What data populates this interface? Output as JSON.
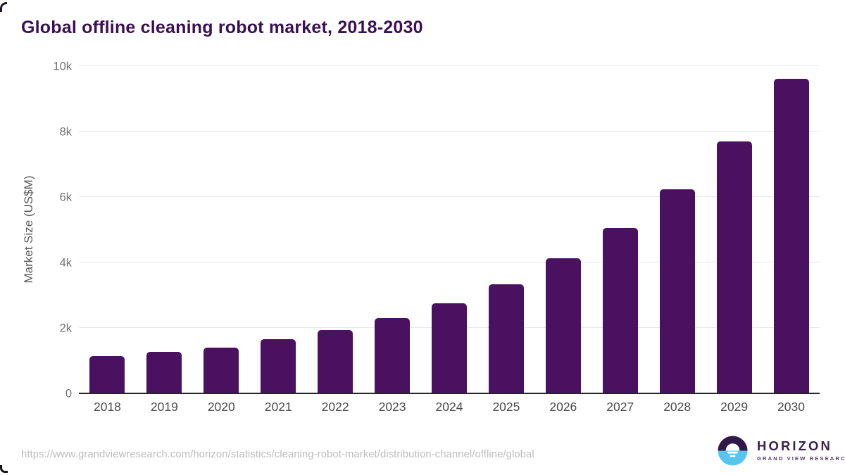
{
  "header": {
    "title": "Global offline cleaning robot market, 2018-2030"
  },
  "footer": {
    "source_url": "https://www.grandviewresearch.com/horizon/statistics/cleaning-robot-market/distribution-channel/offline/global",
    "logo": {
      "brand": "HORIZON",
      "sub_brand": "GRAND VIEW RESEARCH",
      "icon": "horizon-sun-circle-icon"
    }
  },
  "chart_data": {
    "type": "bar",
    "title": "Global offline cleaning robot market, 2018-2030",
    "categories": [
      "2018",
      "2019",
      "2020",
      "2021",
      "2022",
      "2023",
      "2024",
      "2025",
      "2026",
      "2027",
      "2028",
      "2029",
      "2030"
    ],
    "values": [
      1140,
      1270,
      1390,
      1660,
      1940,
      2310,
      2760,
      3340,
      4120,
      5050,
      6230,
      7700,
      9620
    ],
    "series_name": "Market Size",
    "xlabel": "",
    "ylabel": "Market Size (US$M)",
    "ylim": [
      0,
      10000
    ],
    "yticks": [
      {
        "value": 0,
        "label": "0"
      },
      {
        "value": 2000,
        "label": "2k"
      },
      {
        "value": 4000,
        "label": "4k"
      },
      {
        "value": 6000,
        "label": "6k"
      },
      {
        "value": 8000,
        "label": "8k"
      },
      {
        "value": 10000,
        "label": "10k"
      }
    ],
    "grid": true,
    "legend": "none",
    "bar_color": "#4a1160"
  },
  "colors": {
    "accent_purple": "#4a1160",
    "title_text": "#3b1053",
    "grid_line": "#e7e7e7",
    "axis_line": "#262626",
    "tick_label": "#747474",
    "axis_title": "#5a5a5a",
    "x_label": "#4c4c4c",
    "url_text": "#bdbdbd",
    "logo_dark_purple": "#32184a",
    "logo_blue": "#58c5f0",
    "logo_text": "#392450"
  }
}
